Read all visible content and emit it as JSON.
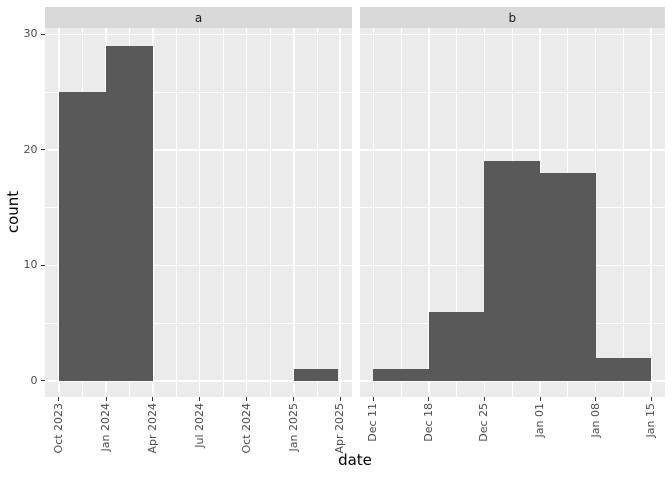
{
  "chart_data": {
    "type": "histogram",
    "title": "",
    "xlabel": "date",
    "ylabel": "count",
    "legend_position": "none",
    "grid": "major and minor, white on gray panel",
    "colors": {
      "bar": "#595959",
      "panel_bg": "#ebebeb",
      "strip_bg": "#d9d9d9",
      "strip_text": "#1a1a1a",
      "grid": "#ffffff",
      "tick": "#333333",
      "axis_text": "#4d4d4d"
    },
    "y_axis": {
      "lim": [
        -1.35,
        30.55
      ],
      "major_ticks": [
        0,
        10,
        20,
        30
      ],
      "minor_ticks": [
        5,
        15,
        25
      ]
    },
    "facets": [
      {
        "label": "a",
        "x_unit": "days since 2023-10-01",
        "xlim": [
          -27.2,
          571.2
        ],
        "ticks": [
          {
            "pos": 0,
            "label": "Oct 2023"
          },
          {
            "pos": 92,
            "label": "Jan 2024"
          },
          {
            "pos": 183,
            "label": "Apr 2024"
          },
          {
            "pos": 274,
            "label": "Jul 2024"
          },
          {
            "pos": 366,
            "label": "Oct 2024"
          },
          {
            "pos": 458,
            "label": "Jan 2025"
          },
          {
            "pos": 548,
            "label": "Apr 2025"
          }
        ],
        "minor_ticks": [
          46,
          137.5,
          228.5,
          320,
          412,
          503
        ],
        "bars": [
          {
            "x0": 0,
            "x1": 92,
            "count": 25
          },
          {
            "x0": 92,
            "x1": 183,
            "count": 29
          },
          {
            "x0": 458,
            "x1": 544,
            "count": 1
          }
        ]
      },
      {
        "label": "b",
        "x_unit": "days since 2024-12-11",
        "xlim": [
          -1.75,
          36.75
        ],
        "ticks": [
          {
            "pos": 0,
            "label": "Dec 11"
          },
          {
            "pos": 7,
            "label": "Dec 18"
          },
          {
            "pos": 14,
            "label": "Dec 25"
          },
          {
            "pos": 21,
            "label": "Jan 01"
          },
          {
            "pos": 28,
            "label": "Jan 08"
          },
          {
            "pos": 35,
            "label": "Jan 15"
          }
        ],
        "minor_ticks": [
          3.5,
          10.5,
          17.5,
          24.5,
          31.5
        ],
        "bars": [
          {
            "x0": 0,
            "x1": 7,
            "count": 1
          },
          {
            "x0": 7,
            "x1": 14,
            "count": 6
          },
          {
            "x0": 14,
            "x1": 21,
            "count": 19
          },
          {
            "x0": 21,
            "x1": 28,
            "count": 18
          },
          {
            "x0": 28,
            "x1": 35,
            "count": 2
          }
        ]
      }
    ]
  }
}
